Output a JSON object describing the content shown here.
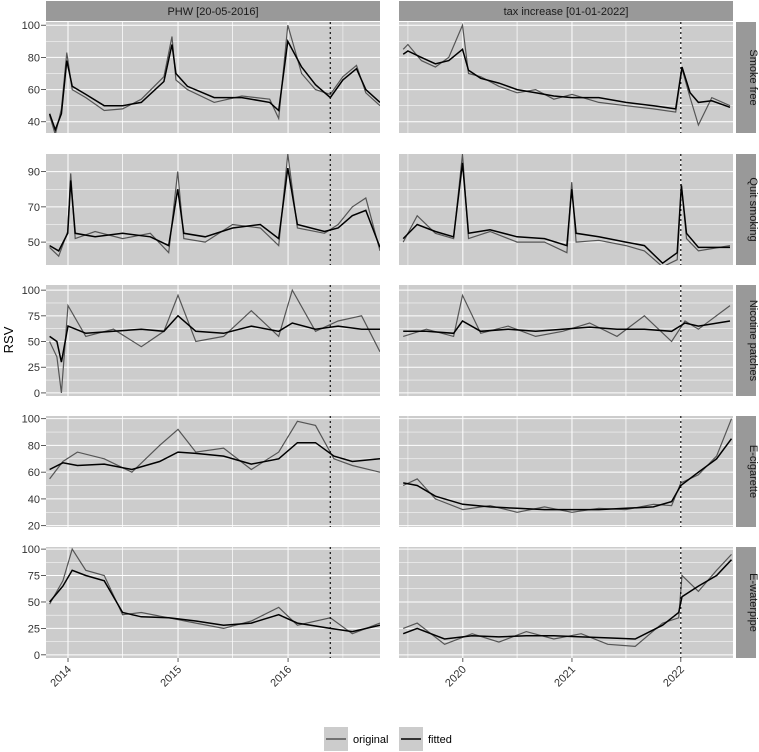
{
  "chart_data": {
    "type": "line",
    "ylabel": "RSV",
    "xlabel": "",
    "columns": [
      {
        "title": "PHW [20-05-2016]",
        "event_date": "2016-05-20",
        "x_range": [
          "2013-10-20",
          "2016-11-01"
        ],
        "x_ticks": [
          "2014",
          "2015",
          "2016"
        ]
      },
      {
        "title": "tax increase [01-01-2022]",
        "event_date": "2022-01-01",
        "x_range": [
          "2019-06-01",
          "2022-06-25"
        ],
        "x_ticks": [
          "2020",
          "2021",
          "2022"
        ]
      }
    ],
    "rows": [
      {
        "label": "Smoke free",
        "ylim": [
          33,
          102
        ],
        "y_ticks": [
          "40",
          "60",
          "80",
          "100"
        ],
        "panels": [
          {
            "x": [
              "2013-11-01",
              "2013-11-20",
              "2013-12-10",
              "2013-12-28",
              "2014-01-15",
              "2014-03-01",
              "2014-05-01",
              "2014-07-01",
              "2014-09-01",
              "2014-11-15",
              "2014-12-12",
              "2014-12-25",
              "2015-02-01",
              "2015-05-01",
              "2015-08-01",
              "2015-11-01",
              "2015-12-01",
              "2015-12-31",
              "2016-02-15",
              "2016-04-01",
              "2016-05-20",
              "2016-07-01",
              "2016-08-15",
              "2016-09-15",
              "2016-11-01"
            ],
            "fitted": [
              45,
              35,
              45,
              78,
              62,
              57,
              50,
              50,
              52,
              65,
              88,
              70,
              62,
              55,
              55,
              52,
              47,
              90,
              74,
              63,
              55,
              66,
              73,
              60,
              52
            ],
            "original": [
              44,
              32,
              48,
              83,
              60,
              55,
              47,
              48,
              54,
              68,
              93,
              66,
              60,
              52,
              56,
              54,
              42,
              100,
              70,
              60,
              57,
              68,
              75,
              58,
              50
            ]
          },
          {
            "x": [
              "2019-06-15",
              "2019-07-01",
              "2019-08-15",
              "2019-10-01",
              "2019-11-15",
              "2019-12-31",
              "2020-01-20",
              "2020-03-01",
              "2020-05-01",
              "2020-07-01",
              "2020-09-01",
              "2020-11-01",
              "2021-01-01",
              "2021-04-01",
              "2021-07-01",
              "2021-10-01",
              "2021-12-15",
              "2022-01-05",
              "2022-02-01",
              "2022-03-01",
              "2022-04-15",
              "2022-06-15"
            ],
            "fitted": [
              82,
              84,
              80,
              76,
              78,
              85,
              72,
              67,
              64,
              60,
              58,
              56,
              55,
              55,
              52,
              50,
              48,
              74,
              58,
              52,
              53,
              49
            ],
            "original": [
              85,
              88,
              78,
              74,
              80,
              100,
              70,
              68,
              62,
              58,
              60,
              54,
              57,
              52,
              50,
              48,
              46,
              73,
              55,
              38,
              55,
              50
            ]
          }
        ]
      },
      {
        "label": "Quit smoking",
        "ylim": [
          37,
          100
        ],
        "y_ticks": [
          "50",
          "70",
          "90"
        ],
        "panels": [
          {
            "x": [
              "2013-11-01",
              "2013-12-01",
              "2013-12-31",
              "2014-01-10",
              "2014-01-25",
              "2014-04-01",
              "2014-07-01",
              "2014-10-01",
              "2014-12-01",
              "2014-12-31",
              "2015-01-20",
              "2015-04-01",
              "2015-07-01",
              "2015-10-01",
              "2015-12-01",
              "2015-12-31",
              "2016-02-01",
              "2016-05-01",
              "2016-06-15",
              "2016-08-01",
              "2016-09-15",
              "2016-11-01"
            ],
            "fitted": [
              48,
              45,
              55,
              85,
              55,
              53,
              55,
              53,
              48,
              80,
              55,
              53,
              58,
              60,
              52,
              92,
              60,
              56,
              58,
              65,
              68,
              47
            ],
            "original": [
              47,
              42,
              56,
              89,
              52,
              56,
              52,
              55,
              44,
              90,
              52,
              50,
              60,
              58,
              48,
              100,
              58,
              55,
              60,
              70,
              75,
              45
            ]
          },
          {
            "x": [
              "2019-06-15",
              "2019-08-01",
              "2019-10-01",
              "2019-12-01",
              "2019-12-31",
              "2020-01-20",
              "2020-04-01",
              "2020-07-01",
              "2020-10-01",
              "2020-12-15",
              "2020-12-31",
              "2021-01-15",
              "2021-04-01",
              "2021-07-01",
              "2021-09-01",
              "2021-11-01",
              "2021-12-20",
              "2022-01-03",
              "2022-01-20",
              "2022-03-01",
              "2022-06-15"
            ],
            "fitted": [
              52,
              60,
              56,
              53,
              95,
              55,
              57,
              53,
              52,
              48,
              80,
              55,
              53,
              50,
              48,
              38,
              44,
              82,
              55,
              47,
              47
            ],
            "original": [
              50,
              65,
              55,
              52,
              100,
              52,
              56,
              50,
              50,
              44,
              84,
              50,
              51,
              48,
              45,
              36,
              40,
              83,
              52,
              45,
              48
            ]
          }
        ]
      },
      {
        "label": "Nicotine patches",
        "ylim": [
          -3,
          105
        ],
        "y_ticks": [
          "0",
          "25",
          "50",
          "75",
          "100"
        ],
        "panels": [
          {
            "x": [
              "2013-11-01",
              "2013-11-25",
              "2013-12-10",
              "2014-01-01",
              "2014-03-01",
              "2014-06-01",
              "2014-09-01",
              "2014-11-15",
              "2015-01-01",
              "2015-03-01",
              "2015-06-01",
              "2015-09-01",
              "2015-12-01",
              "2016-01-15",
              "2016-04-01",
              "2016-06-15",
              "2016-09-01",
              "2016-11-01"
            ],
            "fitted": [
              55,
              50,
              30,
              65,
              58,
              60,
              62,
              60,
              75,
              60,
              58,
              65,
              60,
              68,
              62,
              65,
              62,
              62
            ],
            "original": [
              50,
              35,
              0,
              85,
              55,
              62,
              45,
              60,
              95,
              50,
              55,
              80,
              55,
              100,
              60,
              70,
              75,
              40
            ]
          },
          {
            "x": [
              "2019-06-15",
              "2019-09-01",
              "2019-12-01",
              "2019-12-31",
              "2020-03-01",
              "2020-06-01",
              "2020-09-01",
              "2020-12-01",
              "2021-03-01",
              "2021-06-01",
              "2021-09-01",
              "2021-12-01",
              "2022-01-15",
              "2022-03-01",
              "2022-06-15"
            ],
            "fitted": [
              60,
              60,
              58,
              70,
              60,
              62,
              60,
              62,
              64,
              62,
              62,
              60,
              68,
              65,
              70
            ],
            "original": [
              55,
              62,
              55,
              95,
              58,
              65,
              55,
              60,
              68,
              55,
              75,
              50,
              70,
              62,
              85
            ]
          }
        ]
      },
      {
        "label": "E-cigarette",
        "ylim": [
          19,
          102
        ],
        "y_ticks": [
          "20",
          "40",
          "60",
          "80",
          "100"
        ],
        "panels": [
          {
            "x": [
              "2013-11-01",
              "2013-12-15",
              "2014-02-01",
              "2014-05-01",
              "2014-08-01",
              "2014-11-01",
              "2015-01-01",
              "2015-03-01",
              "2015-06-01",
              "2015-09-01",
              "2015-12-01",
              "2016-02-01",
              "2016-04-01",
              "2016-06-01",
              "2016-08-01",
              "2016-11-01"
            ],
            "fitted": [
              62,
              67,
              65,
              66,
              62,
              68,
              75,
              74,
              72,
              66,
              70,
              82,
              82,
              72,
              68,
              70
            ],
            "original": [
              55,
              68,
              75,
              70,
              60,
              80,
              92,
              75,
              78,
              62,
              75,
              98,
              95,
              70,
              65,
              60
            ]
          },
          {
            "x": [
              "2019-06-15",
              "2019-08-01",
              "2019-10-01",
              "2020-01-01",
              "2020-04-01",
              "2020-07-01",
              "2020-10-01",
              "2021-01-01",
              "2021-04-01",
              "2021-07-01",
              "2021-10-01",
              "2021-12-01",
              "2022-01-01",
              "2022-03-01",
              "2022-05-01",
              "2022-06-20"
            ],
            "fitted": [
              52,
              50,
              42,
              36,
              34,
              33,
              32,
              32,
              32,
              33,
              34,
              38,
              50,
              60,
              70,
              85
            ],
            "original": [
              50,
              55,
              40,
              32,
              35,
              30,
              34,
              30,
              33,
              32,
              36,
              35,
              52,
              58,
              72,
              100
            ]
          }
        ]
      },
      {
        "label": "E-waterpipe",
        "ylim": [
          -3,
          102
        ],
        "y_ticks": [
          "0",
          "25",
          "50",
          "75",
          "100"
        ],
        "panels": [
          {
            "x": [
              "2013-11-01",
              "2013-12-15",
              "2014-01-15",
              "2014-03-01",
              "2014-05-01",
              "2014-07-01",
              "2014-09-01",
              "2014-12-01",
              "2015-03-01",
              "2015-06-01",
              "2015-09-01",
              "2015-12-01",
              "2016-02-01",
              "2016-05-20",
              "2016-08-01",
              "2016-11-01"
            ],
            "fitted": [
              50,
              65,
              80,
              75,
              70,
              40,
              36,
              35,
              32,
              28,
              30,
              38,
              30,
              25,
              22,
              28
            ],
            "original": [
              48,
              70,
              100,
              80,
              75,
              38,
              40,
              35,
              30,
              25,
              32,
              45,
              28,
              35,
              20,
              30
            ]
          },
          {
            "x": [
              "2019-06-15",
              "2019-08-01",
              "2019-11-01",
              "2020-02-01",
              "2020-05-01",
              "2020-08-01",
              "2020-11-01",
              "2021-02-01",
              "2021-05-01",
              "2021-08-01",
              "2021-11-01",
              "2021-12-25",
              "2022-01-05",
              "2022-03-01",
              "2022-05-01",
              "2022-06-20"
            ],
            "fitted": [
              20,
              25,
              15,
              18,
              17,
              18,
              18,
              17,
              16,
              15,
              28,
              40,
              55,
              65,
              75,
              90
            ],
            "original": [
              25,
              30,
              10,
              20,
              12,
              22,
              15,
              20,
              10,
              8,
              30,
              35,
              75,
              60,
              80,
              95
            ]
          }
        ]
      }
    ],
    "legend": {
      "position": "bottom",
      "entries": [
        {
          "label": "original",
          "color": "#555555"
        },
        {
          "label": "fitted",
          "color": "#000000"
        }
      ]
    },
    "colors": {
      "panel_bg": "#cccccc",
      "strip_bg": "#999999",
      "grid": "#ffffff",
      "original": "#555555",
      "fitted": "#000000"
    }
  }
}
